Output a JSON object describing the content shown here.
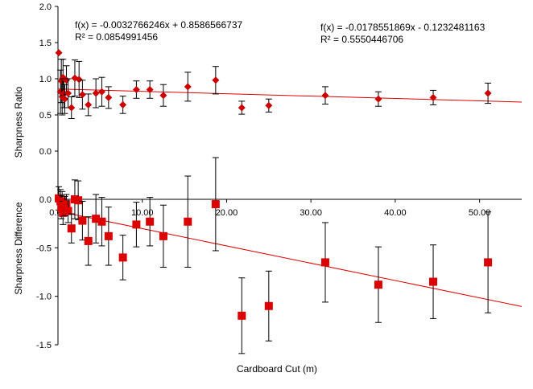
{
  "chart_data": [
    {
      "type": "scatter",
      "panel": "top",
      "ylabel": "Sharpness Ratio",
      "ylim": [
        0,
        2
      ],
      "yticks": [
        "0.0",
        "0.5",
        "1.0",
        "1.5",
        "2.0"
      ],
      "ytick_values": [
        0,
        0.5,
        1.0,
        1.5,
        2.0
      ],
      "marker": "diamond",
      "color": "#cc0000",
      "trendline": {
        "slope": -0.0032766246,
        "intercept": 0.8586566737,
        "equation": "f(x) = -0.0032766246x + 0.8586566737",
        "r2": "R² = 0.0854991456"
      },
      "points": [
        {
          "x": 0.1,
          "y": 1.36,
          "err": 0
        },
        {
          "x": 0.3,
          "y": 0.82,
          "err": 0.3
        },
        {
          "x": 0.4,
          "y": 0.97,
          "err": 0.3
        },
        {
          "x": 0.5,
          "y": 0.75,
          "err": 0.25
        },
        {
          "x": 0.6,
          "y": 1.02,
          "err": 0.25
        },
        {
          "x": 0.7,
          "y": 0.8,
          "err": 0.2
        },
        {
          "x": 0.8,
          "y": 0.72,
          "err": 0.2
        },
        {
          "x": 1.0,
          "y": 0.98,
          "err": 0.2
        },
        {
          "x": 1.2,
          "y": 0.8,
          "err": 0.2
        },
        {
          "x": 1.6,
          "y": 0.6,
          "err": 0.15
        },
        {
          "x": 2.0,
          "y": 1.01,
          "err": 0.25
        },
        {
          "x": 2.5,
          "y": 0.99,
          "err": 0.25
        },
        {
          "x": 2.9,
          "y": 0.78,
          "err": 0.2
        },
        {
          "x": 3.6,
          "y": 0.64,
          "err": 0.15
        },
        {
          "x": 4.5,
          "y": 0.8,
          "err": 0.2
        },
        {
          "x": 5.2,
          "y": 0.82,
          "err": 0.2
        },
        {
          "x": 6.0,
          "y": 0.74,
          "err": 0.15
        },
        {
          "x": 7.7,
          "y": 0.64,
          "err": 0.12
        },
        {
          "x": 9.3,
          "y": 0.85,
          "err": 0.12
        },
        {
          "x": 10.9,
          "y": 0.85,
          "err": 0.12
        },
        {
          "x": 12.5,
          "y": 0.77,
          "err": 0.15
        },
        {
          "x": 15.4,
          "y": 0.89,
          "err": 0.2
        },
        {
          "x": 18.7,
          "y": 0.98,
          "err": 0.19
        },
        {
          "x": 21.8,
          "y": 0.6,
          "err": 0.09
        },
        {
          "x": 25.0,
          "y": 0.63,
          "err": 0.09
        },
        {
          "x": 31.7,
          "y": 0.77,
          "err": 0.12
        },
        {
          "x": 38.0,
          "y": 0.72,
          "err": 0.1
        },
        {
          "x": 44.5,
          "y": 0.74,
          "err": 0.1
        },
        {
          "x": 51.0,
          "y": 0.8,
          "err": 0.14
        }
      ]
    },
    {
      "type": "scatter",
      "panel": "bottom",
      "xlabel": "Cardboard Cut (m)",
      "ylabel": "Sharpness Difference",
      "xlim": [
        0,
        55
      ],
      "xticks": [
        "0.00",
        "10.00",
        "20.00",
        "30.00",
        "40.00",
        "50.00"
      ],
      "xtick_values": [
        0,
        10,
        20,
        30,
        40,
        50
      ],
      "ylim": [
        -1.5,
        0.15
      ],
      "yticks": [
        "-1.5",
        "-1.0",
        "-0.5",
        "0.0"
      ],
      "ytick_values": [
        -1.5,
        -1.0,
        -0.5,
        0.0
      ],
      "marker": "square",
      "color": "#dd0000",
      "trendline": {
        "slope": -0.0178551869,
        "intercept": -0.1232481163,
        "equation": "f(x) = -0.0178551869x - 0.1232481163",
        "r2": "R² = 0.5550446706"
      },
      "points": [
        {
          "x": 0.1,
          "y": 0.01,
          "err": 0.12
        },
        {
          "x": 0.3,
          "y": -0.02,
          "err": 0.12
        },
        {
          "x": 0.4,
          "y": -0.08,
          "err": 0.12
        },
        {
          "x": 0.5,
          "y": -0.02,
          "err": 0.1
        },
        {
          "x": 0.6,
          "y": -0.14,
          "err": 0.12
        },
        {
          "x": 0.8,
          "y": -0.07,
          "err": 0.1
        },
        {
          "x": 1.0,
          "y": -0.05,
          "err": 0.1
        },
        {
          "x": 1.2,
          "y": -0.12,
          "err": 0.12
        },
        {
          "x": 1.6,
          "y": -0.3,
          "err": 0.15
        },
        {
          "x": 2.0,
          "y": 0.0,
          "err": 0.2
        },
        {
          "x": 2.4,
          "y": -0.01,
          "err": 0.2
        },
        {
          "x": 2.9,
          "y": -0.22,
          "err": 0.2
        },
        {
          "x": 3.6,
          "y": -0.43,
          "err": 0.25
        },
        {
          "x": 4.5,
          "y": -0.2,
          "err": 0.25
        },
        {
          "x": 5.2,
          "y": -0.23,
          "err": 0.25
        },
        {
          "x": 6.0,
          "y": -0.38,
          "err": 0.3
        },
        {
          "x": 7.7,
          "y": -0.6,
          "err": 0.23
        },
        {
          "x": 9.3,
          "y": -0.26,
          "err": 0.23
        },
        {
          "x": 10.9,
          "y": -0.23,
          "err": 0.25
        },
        {
          "x": 12.5,
          "y": -0.38,
          "err": 0.32
        },
        {
          "x": 15.4,
          "y": -0.23,
          "err": 0.47
        },
        {
          "x": 18.7,
          "y": -0.05,
          "err": 0.48
        },
        {
          "x": 21.8,
          "y": -1.2,
          "err": 0.39
        },
        {
          "x": 25.0,
          "y": -1.1,
          "err": 0.36
        },
        {
          "x": 31.7,
          "y": -0.65,
          "err": 0.41
        },
        {
          "x": 38.0,
          "y": -0.88,
          "err": 0.39
        },
        {
          "x": 44.5,
          "y": -0.85,
          "err": 0.38
        },
        {
          "x": 51.0,
          "y": -0.65,
          "err": 0.52
        }
      ]
    }
  ]
}
